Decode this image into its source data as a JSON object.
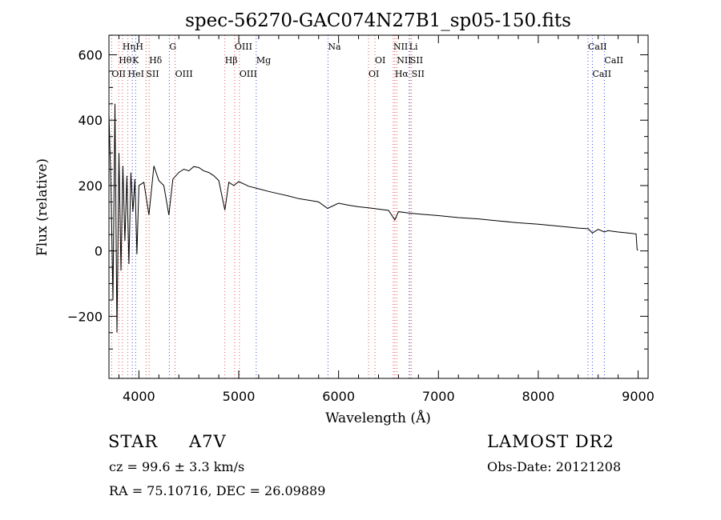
{
  "chart_data": {
    "type": "line",
    "title": "spec-56270-GAC074N27B1_sp05-150.fits",
    "xlabel": "Wavelength (Å)",
    "ylabel": "Flux (relative)",
    "xlim": [
      3700,
      9100
    ],
    "ylim": [
      -390,
      660
    ],
    "xticks": [
      4000,
      5000,
      6000,
      7000,
      8000,
      9000
    ],
    "yticks": [
      -200,
      0,
      200,
      400,
      600
    ],
    "grid": false,
    "line_color": "#000000",
    "series": [
      {
        "x": [
          3700,
          3720,
          3740,
          3760,
          3780,
          3800,
          3820,
          3840,
          3860,
          3880,
          3900,
          3920,
          3940,
          3960,
          3980,
          4000,
          4050,
          4100,
          4150,
          4200,
          4250,
          4300,
          4340,
          4400,
          4450,
          4500,
          4550,
          4600,
          4650,
          4700,
          4750,
          4800,
          4861,
          4900,
          4950,
          5000,
          5100,
          5200,
          5300,
          5400,
          5500,
          5600,
          5700,
          5800,
          5890,
          6000,
          6100,
          6200,
          6300,
          6400,
          6500,
          6563,
          6600,
          6700,
          6800,
          7000,
          7200,
          7400,
          7600,
          7800,
          8000,
          8200,
          8400,
          8500,
          8542,
          8600,
          8662,
          8700,
          8800,
          8900,
          8980,
          8990,
          9000
        ],
        "y": [
          420,
          200,
          -150,
          450,
          -250,
          300,
          -60,
          260,
          30,
          230,
          -40,
          240,
          120,
          220,
          -10,
          200,
          210,
          110,
          260,
          215,
          200,
          110,
          220,
          240,
          250,
          245,
          258,
          255,
          245,
          240,
          230,
          215,
          125,
          210,
          200,
          212,
          198,
          190,
          182,
          175,
          168,
          160,
          155,
          150,
          130,
          146,
          140,
          135,
          132,
          128,
          124,
          95,
          120,
          116,
          113,
          108,
          102,
          98,
          92,
          86,
          82,
          76,
          70,
          68,
          55,
          66,
          58,
          62,
          58,
          55,
          52,
          4,
          2
        ]
      }
    ],
    "lines_red": [
      {
        "label": "OII",
        "x": 3727,
        "row": 3,
        "anchor": "center"
      },
      {
        "label": "Hθ",
        "x": 3798,
        "row": 2,
        "anchor": "center"
      },
      {
        "label": "Hη",
        "x": 3835,
        "row": 1,
        "anchor": "center"
      },
      {
        "label": "HeI",
        "x": 3889,
        "row": 3,
        "anchor": "center"
      },
      {
        "label": "SII",
        "x": 4072,
        "row": 3,
        "anchor": "center"
      },
      {
        "label": "Hδ",
        "x": 4102,
        "row": 2,
        "anchor": "center"
      },
      {
        "label": "OIII",
        "x": 4363,
        "row": 3,
        "anchor": "center"
      },
      {
        "label": "Hβ",
        "x": 4861,
        "row": 2,
        "anchor": "center"
      },
      {
        "label": "OIII",
        "x": 4959,
        "row": 1,
        "anchor": "center"
      },
      {
        "label": "OIII",
        "x": 5007,
        "row": 3,
        "anchor": "center"
      },
      {
        "label": "OI",
        "x": 6300,
        "row": 3,
        "anchor": "center"
      },
      {
        "label": "OI",
        "x": 6364,
        "row": 2,
        "anchor": "center"
      },
      {
        "label": "NII",
        "x": 6548,
        "row": 1,
        "anchor": "center"
      },
      {
        "label": "Hα",
        "x": 6563,
        "row": 3,
        "anchor": "center"
      },
      {
        "label": "NII",
        "x": 6583,
        "row": 2,
        "anchor": "center"
      },
      {
        "label": "SII",
        "x": 6716,
        "row": 2,
        "anchor": "center"
      },
      {
        "label": "SII",
        "x": 6731,
        "row": 3,
        "anchor": "center"
      }
    ],
    "lines_blue": [
      {
        "label": "H",
        "x": 3968,
        "row": 1,
        "anchor": "center"
      },
      {
        "label": "K",
        "x": 3934,
        "row": 2,
        "anchor": "center"
      },
      {
        "label": "G",
        "x": 4305,
        "row": 1,
        "anchor": "center"
      },
      {
        "label": "Mg",
        "x": 5175,
        "row": 2,
        "anchor": "center"
      },
      {
        "label": "Na",
        "x": 5894,
        "row": 1,
        "anchor": "center"
      },
      {
        "label": "Li",
        "x": 6707,
        "row": 1,
        "anchor": "center"
      },
      {
        "label": "CaII",
        "x": 8498,
        "row": 1,
        "anchor": "center"
      },
      {
        "label": "CaII",
        "x": 8542,
        "row": 3,
        "anchor": "center"
      },
      {
        "label": "CaII",
        "x": 8662,
        "row": 2,
        "anchor": "center"
      }
    ],
    "line_colors": {
      "red": "#e05050",
      "blue": "#3b50d8"
    }
  },
  "info": {
    "class_label": "STAR",
    "subclass": "A7V",
    "redshift": "cz =  99.6 ± 3.3 km/s",
    "coords": "RA =   75.10716, DEC =   26.09889",
    "survey": "LAMOST DR2",
    "obs_date": "Obs-Date: 20121208"
  }
}
